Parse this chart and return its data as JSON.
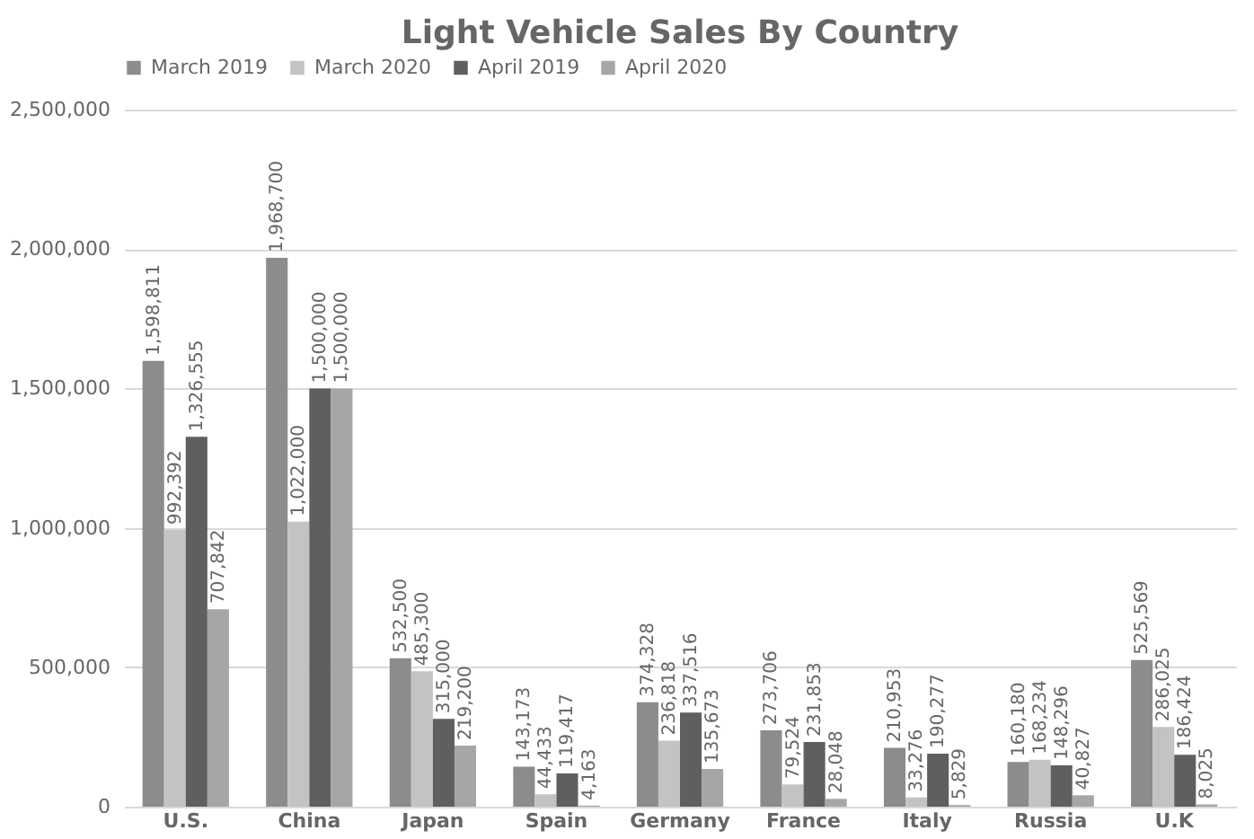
{
  "chart_data": {
    "type": "bar",
    "title": "Light Vehicle Sales By Country",
    "categories": [
      "U.S.",
      "China",
      "Japan",
      "Spain",
      "Germany",
      "France",
      "Italy",
      "Russia",
      "U.K"
    ],
    "series": [
      {
        "name": "March 2019",
        "color": "#8c8c8c",
        "values": [
          1598811,
          1968700,
          532500,
          143173,
          374328,
          273706,
          210953,
          160180,
          525569
        ],
        "value_labels": [
          "1,598,811",
          "1,968,700",
          "532,500",
          "143,173",
          "374,328",
          "273,706",
          "210,953",
          "160,180",
          "525,569"
        ]
      },
      {
        "name": "March 2020",
        "color": "#c3c3c3",
        "values": [
          992392,
          1022000,
          485300,
          44433,
          236818,
          79524,
          33276,
          168234,
          286025
        ],
        "value_labels": [
          "992,392",
          "1,022,000",
          "485,300",
          "44,433",
          "236,818",
          "79,524",
          "33,276",
          "168,234",
          "286,025"
        ]
      },
      {
        "name": "April 2019",
        "color": "#5f5f5f",
        "values": [
          1326555,
          1500000,
          315000,
          119417,
          337516,
          231853,
          190277,
          148296,
          186424
        ],
        "value_labels": [
          "1,326,555",
          "1,500,000",
          "315,000",
          "119,417",
          "337,516",
          "231,853",
          "190,277",
          "148,296",
          "186,424"
        ]
      },
      {
        "name": "April 2020",
        "color": "#a6a6a6",
        "values": [
          707842,
          1500000,
          219200,
          4163,
          135673,
          28048,
          5829,
          40827,
          8025
        ],
        "value_labels": [
          "707,842",
          "1,500,000",
          "219,200",
          "4,163",
          "135,673",
          "28,048",
          "5,829",
          "40,827",
          "8,025"
        ]
      }
    ],
    "ylim": [
      0,
      2500000
    ],
    "yticks": [
      0,
      {
        "value": 500000,
        "label": "500,000"
      },
      {
        "value": 1000000,
        "label": "1,000,000"
      },
      {
        "value": 1500000,
        "label": "1,500,000"
      },
      {
        "value": 2000000,
        "label": "2,000,000"
      },
      {
        "value": 2500000,
        "label": "2,500,000"
      }
    ],
    "grid": "y",
    "legend": "top"
  }
}
